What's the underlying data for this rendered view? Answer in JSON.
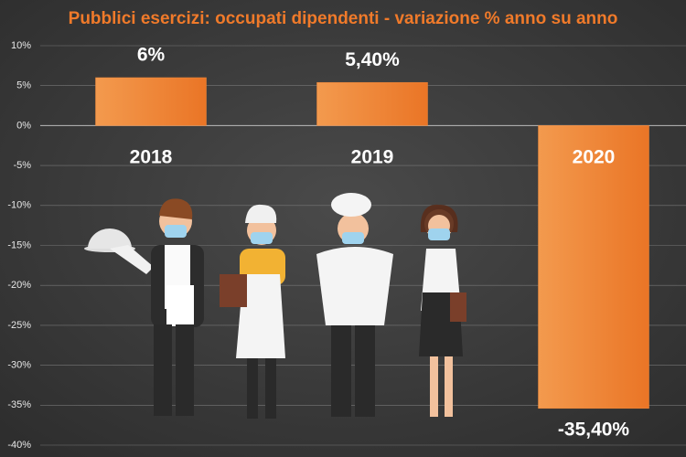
{
  "chart_data": {
    "type": "bar",
    "title": "Pubblici esercizi: occupati dipendenti - variazione % anno su anno",
    "categories": [
      "2018",
      "2019",
      "2020"
    ],
    "values": [
      6,
      5.4,
      -35.4
    ],
    "value_labels": [
      "6%",
      "5,40%",
      "-35,40%"
    ],
    "color": "#f0883a",
    "ylim": [
      -40,
      10
    ],
    "yticks": [
      {
        "value": 10,
        "label": "10%"
      },
      {
        "value": 5,
        "label": "5%"
      },
      {
        "value": 0,
        "label": "0%"
      },
      {
        "value": -5,
        "label": "-5%"
      },
      {
        "value": -10,
        "label": "-10%"
      },
      {
        "value": -15,
        "label": "-15%"
      },
      {
        "value": -20,
        "label": "-20%"
      },
      {
        "value": -25,
        "label": "-25%"
      },
      {
        "value": -30,
        "label": "-30%"
      },
      {
        "value": -35,
        "label": "-35%"
      },
      {
        "value": -40,
        "label": "-40%"
      }
    ],
    "grid": true
  }
}
